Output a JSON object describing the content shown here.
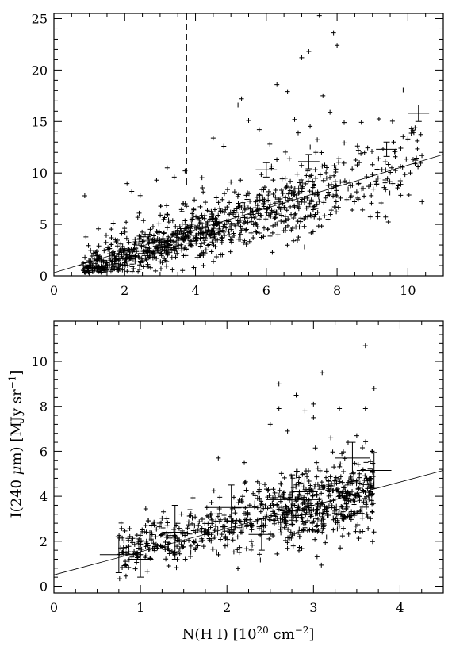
{
  "figure": {
    "shared_ylabel_prefix": "I(240 ",
    "shared_ylabel_mu": "μ",
    "shared_ylabel_mid": "m)  [MJy sr",
    "shared_ylabel_exp": "−1",
    "shared_ylabel_suffix": "]"
  },
  "chart_data": [
    {
      "type": "scatter",
      "title": "",
      "xlabel": "",
      "ylabel": "",
      "xlim": [
        0,
        11
      ],
      "ylim": [
        0,
        25.5
      ],
      "xticks": [
        0,
        2,
        4,
        6,
        8,
        10
      ],
      "yticks": [
        0,
        5,
        10,
        15,
        20,
        25
      ],
      "marker": "+",
      "point_color": "#000000",
      "fit_line": {
        "x": [
          0,
          11
        ],
        "y": [
          0.3,
          11.8
        ]
      },
      "vline": {
        "x": 3.75,
        "style": "dashed"
      },
      "n_points": 1100,
      "point_trend": {
        "intercept": -0.4,
        "slope": 1.1
      },
      "outliers": [
        [
          5.2,
          16.6
        ],
        [
          5.3,
          17.2
        ],
        [
          5.5,
          15.1
        ],
        [
          6.3,
          18.6
        ],
        [
          6.6,
          17.9
        ],
        [
          6.8,
          15.2
        ],
        [
          6.9,
          13.9
        ],
        [
          7.0,
          21.2
        ],
        [
          7.2,
          21.8
        ],
        [
          7.5,
          25.3
        ],
        [
          7.6,
          17.5
        ],
        [
          7.9,
          23.6
        ],
        [
          8.0,
          22.4
        ],
        [
          7.8,
          15.9
        ],
        [
          8.2,
          14.9
        ],
        [
          6.1,
          12.8
        ],
        [
          5.8,
          14.2
        ],
        [
          4.5,
          13.4
        ],
        [
          4.8,
          12.6
        ],
        [
          3.2,
          10.5
        ],
        [
          2.9,
          9.3
        ],
        [
          3.4,
          9.6
        ],
        [
          2.2,
          8.2
        ],
        [
          7.4,
          12.0
        ],
        [
          8.6,
          12.2
        ],
        [
          9.0,
          10.8
        ],
        [
          9.6,
          13.0
        ],
        [
          10.0,
          13.3
        ],
        [
          10.1,
          14.3
        ],
        [
          9.8,
          12.4
        ]
      ],
      "error_bars": [
        {
          "x": 0.9,
          "y": 1.0,
          "xerr": 0.2,
          "yerr": 0.3
        },
        {
          "x": 6.0,
          "y": 10.3,
          "xerr": 0.3,
          "yerr": 0.7
        },
        {
          "x": 7.2,
          "y": 11.1,
          "xerr": 0.3,
          "yerr": 0.7
        },
        {
          "x": 9.4,
          "y": 12.3,
          "xerr": 0.3,
          "yerr": 0.7
        },
        {
          "x": 10.3,
          "y": 15.8,
          "xerr": 0.3,
          "yerr": 0.8
        }
      ]
    },
    {
      "type": "scatter",
      "title": "",
      "xlabel_main": "N(H I) [10",
      "xlabel_exp1": "20",
      "xlabel_mid": " cm",
      "xlabel_exp2": "−2",
      "xlabel_end": "]",
      "ylabel": "",
      "xlim": [
        0,
        4.5
      ],
      "ylim": [
        -0.3,
        11.8
      ],
      "xticks": [
        0,
        1,
        2,
        3,
        4
      ],
      "yticks": [
        0,
        2,
        4,
        6,
        8,
        10
      ],
      "marker": "+",
      "point_color": "#000000",
      "fit_line": {
        "x": [
          0,
          4.5
        ],
        "y": [
          0.5,
          5.15
        ]
      },
      "n_points": 900,
      "point_trend": {
        "intercept": 0.85,
        "slope": 0.92
      },
      "outliers": [
        [
          2.6,
          7.9
        ],
        [
          2.6,
          9.0
        ],
        [
          2.8,
          8.5
        ],
        [
          2.9,
          7.8
        ],
        [
          3.0,
          7.5
        ],
        [
          3.1,
          9.5
        ],
        [
          3.3,
          7.9
        ],
        [
          3.4,
          6.4
        ],
        [
          3.5,
          6.7
        ],
        [
          3.6,
          7.9
        ],
        [
          3.6,
          10.7
        ],
        [
          3.7,
          8.8
        ],
        [
          2.7,
          6.9
        ],
        [
          3.2,
          6.6
        ],
        [
          2.5,
          7.2
        ],
        [
          3.0,
          8.1
        ],
        [
          1.9,
          5.7
        ],
        [
          2.2,
          5.5
        ]
      ],
      "error_bars": [
        {
          "x": 0.75,
          "y": 1.4,
          "xerr": 0.22,
          "yerr": 0.8
        },
        {
          "x": 1.0,
          "y": 1.2,
          "xerr": 0.15,
          "yerr": 0.8
        },
        {
          "x": 1.4,
          "y": 2.4,
          "xerr": 0.15,
          "yerr": 1.2
        },
        {
          "x": 2.05,
          "y": 3.5,
          "xerr": 0.3,
          "yerr": 1.0
        },
        {
          "x": 2.4,
          "y": 2.3,
          "xerr": 0.15,
          "yerr": 0.7
        },
        {
          "x": 2.75,
          "y": 3.85,
          "xerr": 0.3,
          "yerr": 1.1
        },
        {
          "x": 2.9,
          "y": 4.2,
          "xerr": 0.15,
          "yerr": 0.8
        },
        {
          "x": 3.45,
          "y": 5.7,
          "xerr": 0.2,
          "yerr": 0.7
        },
        {
          "x": 3.7,
          "y": 5.15,
          "xerr": 0.2,
          "yerr": 0.8
        }
      ]
    }
  ]
}
